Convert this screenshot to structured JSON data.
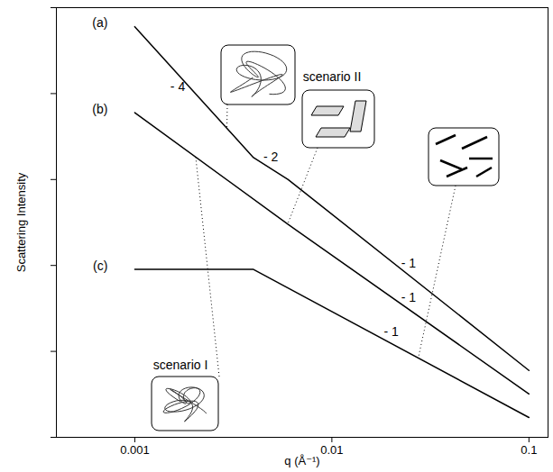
{
  "chart_data": {
    "type": "line",
    "x_label": "q (Å⁻¹)",
    "y_label": "Scattering Intensity",
    "log": true,
    "xlim": [
      0.0004,
      0.125
    ],
    "ylim": [
      1,
      100000
    ],
    "xticks": [
      0.001,
      0.01,
      0.1
    ],
    "yticks": [
      1,
      10,
      100,
      1000,
      10000,
      100000
    ],
    "tick_labels": "x",
    "color": "#000000",
    "series": [
      {
        "name": "(a)",
        "x": [
          0.001,
          0.004,
          0.006,
          0.1
        ],
        "values": [
          60000,
          1800,
          1000,
          6
        ],
        "segment_labels": [
          "- 4",
          "- 2",
          "- 1"
        ]
      },
      {
        "name": "(b)",
        "x": [
          0.001,
          0.006,
          0.1
        ],
        "values": [
          6000,
          300,
          3.2
        ],
        "segment_labels": [
          null,
          "- 1"
        ]
      },
      {
        "name": "(c)",
        "x": [
          0.001,
          0.004,
          0.1
        ],
        "values": [
          90,
          90,
          1.7
        ],
        "segment_labels": [
          null,
          "- 1"
        ]
      }
    ],
    "annotations": [
      "scenario I",
      "scenario II"
    ]
  }
}
